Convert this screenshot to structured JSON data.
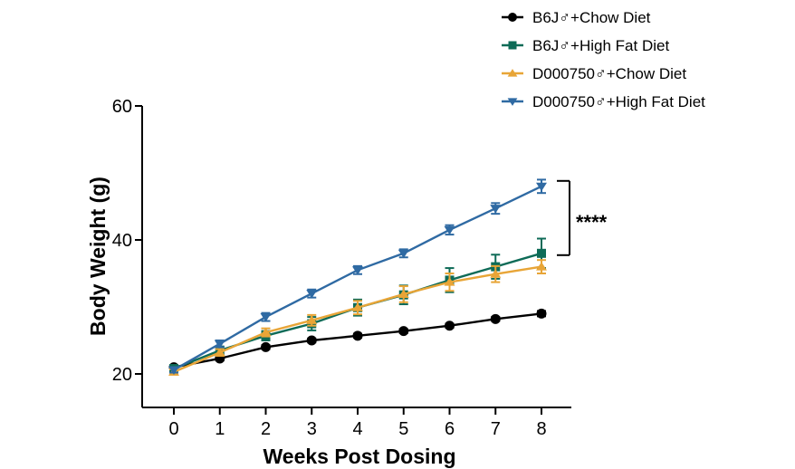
{
  "chart_data": {
    "type": "line",
    "xlabel": "Weeks Post Dosing",
    "ylabel": "Body Weight (g)",
    "x": [
      0,
      1,
      2,
      3,
      4,
      5,
      6,
      7,
      8
    ],
    "x_ticks": [
      "0",
      "1",
      "2",
      "3",
      "4",
      "5",
      "6",
      "7",
      "8"
    ],
    "xlim": [
      0,
      8
    ],
    "ylim": [
      16,
      60
    ],
    "y_ticks": [
      20,
      40,
      60
    ],
    "y_tick_labels": [
      "20",
      "40",
      "60"
    ],
    "grid": false,
    "legend_position": "top-right",
    "series": [
      {
        "name": "B6J♂+Chow Diet",
        "color": "#000000",
        "marker": "circle",
        "values": [
          21.0,
          22.3,
          24.0,
          25.0,
          25.7,
          26.4,
          27.2,
          28.2,
          29.0
        ],
        "errors": [
          0.3,
          0.3,
          0.3,
          0.3,
          0.3,
          0.3,
          0.3,
          0.3,
          0.4
        ]
      },
      {
        "name": "B6J♂+High Fat Diet",
        "color": "#0e6b57",
        "marker": "square",
        "values": [
          20.8,
          23.5,
          25.7,
          27.5,
          29.9,
          31.8,
          34.0,
          36.0,
          38.0
        ],
        "errors": [
          0.5,
          0.6,
          0.7,
          1.0,
          1.2,
          1.4,
          1.8,
          1.8,
          2.2
        ]
      },
      {
        "name": "D000750♂+Chow Diet",
        "color": "#e8a537",
        "marker": "triangle-up",
        "values": [
          20.3,
          23.2,
          26.2,
          28.0,
          29.9,
          31.9,
          33.7,
          34.9,
          36.0
        ],
        "errors": [
          0.4,
          0.5,
          0.6,
          0.8,
          1.0,
          1.2,
          1.3,
          1.2,
          1.0
        ]
      },
      {
        "name": "D000750♂+High Fat Diet",
        "color": "#2f6aa3",
        "marker": "triangle-down",
        "values": [
          20.6,
          24.5,
          28.5,
          32.0,
          35.5,
          38.0,
          41.5,
          44.7,
          48.0
        ],
        "errors": [
          0.4,
          0.5,
          0.6,
          0.6,
          0.6,
          0.6,
          0.7,
          0.8,
          1.0
        ]
      }
    ],
    "annotation": {
      "text": "****",
      "y_range": [
        38.0,
        48.0
      ]
    }
  }
}
